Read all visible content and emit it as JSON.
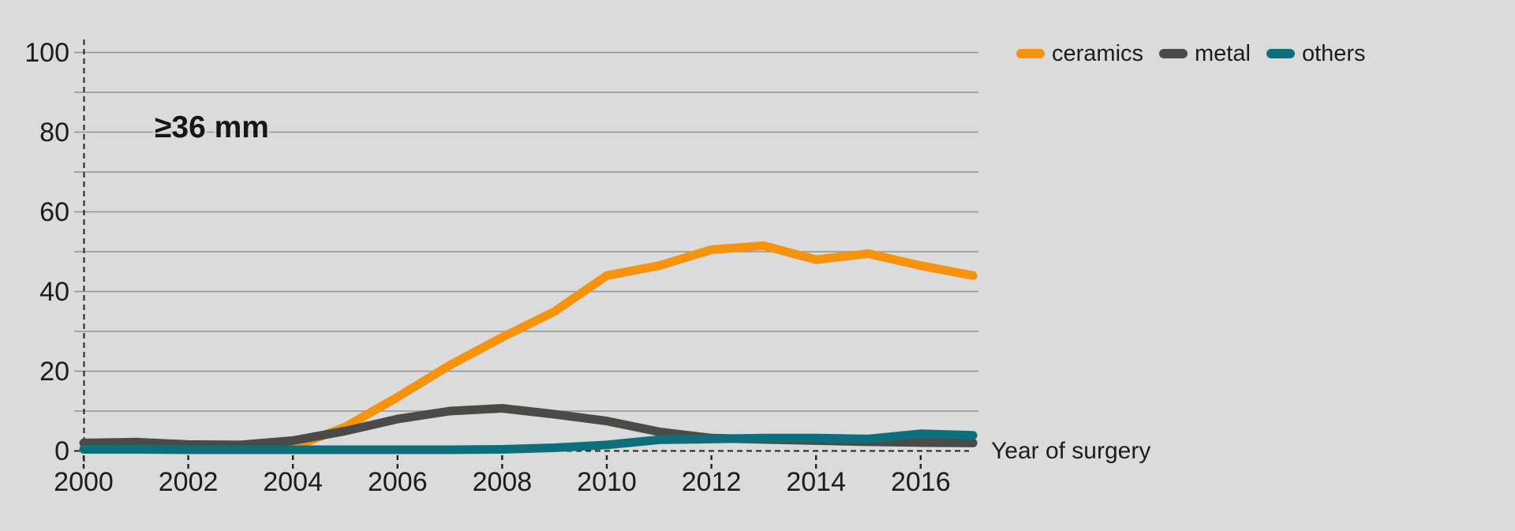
{
  "annotation": "≥36 mm",
  "x_axis_title": "Year of surgery",
  "legend": {
    "items": [
      {
        "label": "ceramics"
      },
      {
        "label": "metal"
      },
      {
        "label": "others"
      }
    ]
  },
  "colors": {
    "background": "#dbdbdb",
    "gridline": "#929292",
    "axis_dash": "#222222",
    "text": "#1c1c1c",
    "ceramics": "#f5920e",
    "metal": "#4a4a48",
    "others": "#0e6f7c"
  },
  "chart_data": {
    "type": "line",
    "title": "",
    "annotation": "≥36 mm",
    "xlabel": "Year of surgery",
    "ylabel": "",
    "x": [
      2000,
      2001,
      2002,
      2003,
      2004,
      2005,
      2006,
      2007,
      2008,
      2009,
      2010,
      2011,
      2012,
      2013,
      2014,
      2015,
      2016,
      2017
    ],
    "series": [
      {
        "name": "ceramics",
        "color": "#f5920e",
        "values": [
          0.5,
          0.5,
          0.5,
          0.6,
          1.0,
          6,
          13.5,
          21.5,
          28.5,
          35,
          44,
          46.5,
          50.5,
          51.5,
          48,
          49.5,
          46.5,
          44
        ]
      },
      {
        "name": "metal",
        "color": "#4a4a48",
        "values": [
          2.0,
          2.2,
          1.6,
          1.5,
          2.6,
          5,
          8,
          10,
          10.7,
          9.2,
          7.5,
          4.8,
          3.2,
          2.9,
          2.6,
          2.3,
          2.1,
          2.0
        ]
      },
      {
        "name": "others",
        "color": "#0e6f7c",
        "values": [
          0.4,
          0.4,
          0.3,
          0.3,
          0.3,
          0.3,
          0.3,
          0.3,
          0.4,
          0.8,
          1.5,
          2.8,
          3.0,
          3.2,
          3.2,
          3.0,
          4.3,
          3.9
        ]
      }
    ],
    "xlim": [
      2000,
      2017
    ],
    "ylim": [
      0,
      100
    ],
    "ygrid_step": 10,
    "yticks_labeled": [
      0,
      20,
      40,
      60,
      80,
      100
    ],
    "xticks_labeled": [
      2000,
      2002,
      2004,
      2006,
      2008,
      2010,
      2012,
      2014,
      2016
    ],
    "grid": "horizontal",
    "legend_position": "top-right"
  }
}
